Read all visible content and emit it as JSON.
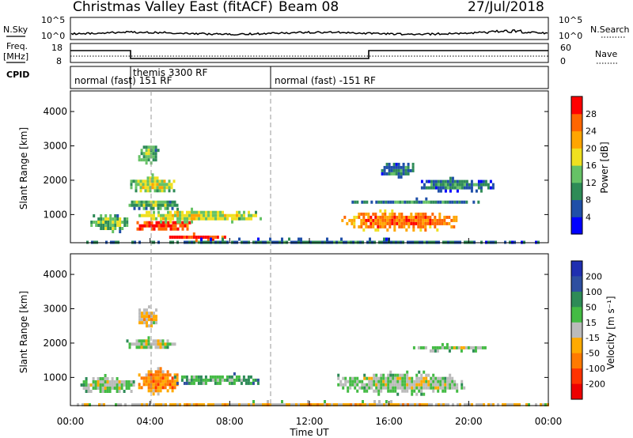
{
  "header": {
    "radar": "Christmas Valley East (fitACF)",
    "beam": "Beam 08",
    "date": "27/Jul/2018"
  },
  "top_panels": {
    "nsky_label": "N.Sky",
    "nsky_ticks": [
      "10^5",
      "10^0"
    ],
    "nsearch_label": "N.Search",
    "freq_label_1": "Freq.",
    "freq_label_2": "[MHz]",
    "freq_ticks": [
      "18",
      "8"
    ],
    "nave_label": "Nave",
    "nave_ticks": [
      "60",
      "0"
    ],
    "cpid_label": "CPID",
    "cpid_segments": [
      "normal (fast) 151 RF",
      "themis 3300 RF",
      "normal (fast) -151 RF"
    ]
  },
  "colors": {
    "power": [
      "#0000ff",
      "#1f4fa8",
      "#2e8b57",
      "#66c266",
      "#f0e020",
      "#ffa500",
      "#ff6600",
      "#ff0000"
    ],
    "velocity": [
      "#1f2fb0",
      "#2e4fa0",
      "#2e8b57",
      "#44bb44",
      "#bbbbbb",
      "#ffaa00",
      "#ff7a00",
      "#ff3300",
      "#ee0000"
    ]
  },
  "chart_data": [
    {
      "type": "heatmap",
      "title": "Power",
      "xlabel": "",
      "ylabel": "Slant Range [km]",
      "x_ticks": [
        "00:00",
        "04:00",
        "08:00",
        "12:00",
        "16:00",
        "20:00",
        "00:00"
      ],
      "y_ticks": [
        1000,
        2000,
        3000,
        4000
      ],
      "xlim_hours": [
        0,
        24
      ],
      "ylim_km": [
        180,
        4600
      ],
      "colorbar_label": "Power [dB]",
      "colorbar_ticks": [
        "28",
        "24",
        "20",
        "16",
        "12",
        "8",
        "4"
      ],
      "blobs": [
        {
          "t0": 4.6,
          "t1": 7.8,
          "r0": 280,
          "r1": 480,
          "level": 7
        },
        {
          "t0": 3.2,
          "t1": 6.0,
          "r0": 560,
          "r1": 900,
          "level": 7
        },
        {
          "t0": 3.3,
          "t1": 9.6,
          "r0": 820,
          "r1": 1200,
          "level": 4
        },
        {
          "t0": 2.8,
          "t1": 5.4,
          "r0": 1180,
          "r1": 1500,
          "level": 3
        },
        {
          "t0": 3.0,
          "t1": 5.2,
          "r0": 1650,
          "r1": 2200,
          "level": 4
        },
        {
          "t0": 1.0,
          "t1": 2.8,
          "r0": 500,
          "r1": 1100,
          "level": 3
        },
        {
          "t0": 3.4,
          "t1": 4.4,
          "r0": 2500,
          "r1": 3100,
          "level": 3
        },
        {
          "t0": 13.6,
          "t1": 19.4,
          "r0": 560,
          "r1": 1150,
          "level": 6
        },
        {
          "t0": 14.0,
          "t1": 20.6,
          "r0": 1350,
          "r1": 1500,
          "level": 2
        },
        {
          "t0": 17.6,
          "t1": 21.2,
          "r0": 1700,
          "r1": 2100,
          "level": 2
        },
        {
          "t0": 15.6,
          "t1": 17.2,
          "r0": 2100,
          "r1": 2600,
          "level": 2
        },
        {
          "t0": 0.2,
          "t1": 24.0,
          "r0": 200,
          "r1": 330,
          "level": 2
        }
      ]
    },
    {
      "type": "heatmap",
      "title": "Velocity",
      "xlabel": "Time UT",
      "ylabel": "Slant Range [km]",
      "x_ticks": [
        "00:00",
        "04:00",
        "08:00",
        "12:00",
        "16:00",
        "20:00",
        "00:00"
      ],
      "y_ticks": [
        1000,
        2000,
        3000,
        4000
      ],
      "xlim_hours": [
        0,
        24
      ],
      "ylim_km": [
        180,
        4600
      ],
      "colorbar_label": "Velocity [m s⁻¹]",
      "colorbar_ticks": [
        "200",
        "100",
        "50",
        "15",
        "-15",
        "-50",
        "-100",
        "-200"
      ],
      "blobs": [
        {
          "t0": 0.5,
          "t1": 3.2,
          "r0": 550,
          "r1": 1100,
          "level": 4
        },
        {
          "t0": 3.4,
          "t1": 5.4,
          "r0": 500,
          "r1": 1300,
          "level": 6
        },
        {
          "t0": 5.2,
          "t1": 9.6,
          "r0": 800,
          "r1": 1150,
          "level": 3
        },
        {
          "t0": 2.8,
          "t1": 5.2,
          "r0": 1850,
          "r1": 2200,
          "level": 4
        },
        {
          "t0": 3.3,
          "t1": 4.3,
          "r0": 2500,
          "r1": 3100,
          "level": 5
        },
        {
          "t0": 13.4,
          "t1": 19.8,
          "r0": 550,
          "r1": 1200,
          "level": 4
        },
        {
          "t0": 17.2,
          "t1": 21.0,
          "r0": 1800,
          "r1": 2000,
          "level": 4
        },
        {
          "t0": 0.2,
          "t1": 24.0,
          "r0": 200,
          "r1": 340,
          "level": 5
        }
      ]
    }
  ]
}
